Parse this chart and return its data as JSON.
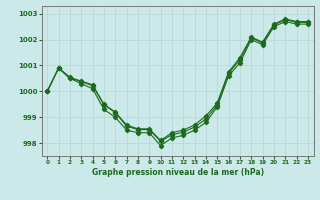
{
  "title": "Graphe pression niveau de la mer (hPa)",
  "bg_color": "#cce9e9",
  "grid_color": "#b8d8d8",
  "line_color": "#1a6b1a",
  "xlim": [
    -0.5,
    23.5
  ],
  "ylim": [
    997.5,
    1003.3
  ],
  "yticks": [
    998,
    999,
    1000,
    1001,
    1002,
    1003
  ],
  "xticks": [
    0,
    1,
    2,
    3,
    4,
    5,
    6,
    7,
    8,
    9,
    10,
    11,
    12,
    13,
    14,
    15,
    16,
    17,
    18,
    19,
    20,
    21,
    22,
    23
  ],
  "series1": {
    "x": [
      0,
      1,
      2,
      3,
      4,
      5,
      6,
      7,
      8,
      9,
      10,
      11,
      12,
      13,
      14,
      15,
      16,
      17,
      18,
      19,
      20,
      21,
      22,
      23
    ],
    "y": [
      1000.0,
      1000.9,
      1000.5,
      1000.3,
      1000.1,
      999.3,
      999.0,
      998.5,
      998.4,
      998.4,
      997.9,
      998.2,
      998.3,
      998.5,
      998.8,
      999.4,
      1000.6,
      1001.1,
      1002.0,
      1001.8,
      1002.5,
      1002.7,
      1002.6,
      1002.6
    ]
  },
  "series2": {
    "x": [
      0,
      1,
      2,
      3,
      4,
      5,
      6,
      7,
      8,
      9,
      10,
      11,
      12,
      13,
      14,
      15,
      16,
      17,
      18,
      19,
      20,
      21,
      22,
      23
    ],
    "y": [
      1000.0,
      1000.9,
      1000.5,
      1000.4,
      1000.25,
      999.5,
      999.2,
      998.7,
      998.55,
      998.55,
      998.1,
      998.4,
      998.5,
      998.7,
      999.05,
      999.55,
      1000.75,
      1001.3,
      1002.1,
      1001.9,
      1002.6,
      1002.8,
      1002.7,
      1002.7
    ]
  },
  "series3": {
    "x": [
      0,
      1,
      2,
      3,
      4,
      5,
      6,
      7,
      8,
      9,
      10,
      11,
      12,
      13,
      14,
      15,
      16,
      17,
      18,
      19,
      20,
      21,
      22,
      23
    ],
    "y": [
      1000.0,
      1000.9,
      1000.55,
      1000.38,
      1000.22,
      999.48,
      999.18,
      998.65,
      998.52,
      998.52,
      998.07,
      998.32,
      998.42,
      998.62,
      998.93,
      999.48,
      1000.7,
      1001.22,
      1002.07,
      1001.87,
      1002.57,
      1002.77,
      1002.67,
      1002.67
    ]
  }
}
